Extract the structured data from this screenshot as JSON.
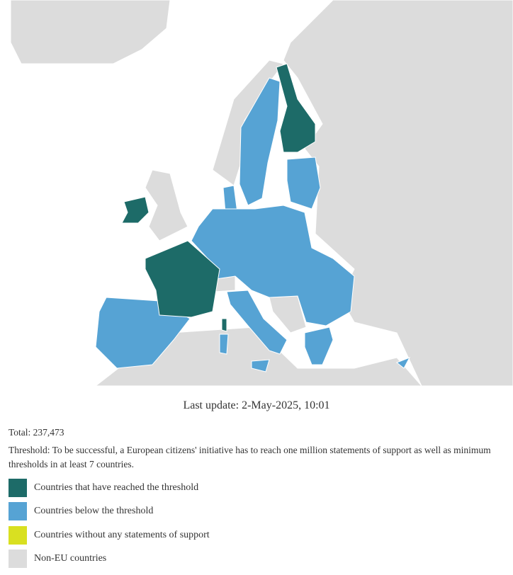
{
  "map": {
    "last_update": "Last update: 2-May-2025, 10:01"
  },
  "info": {
    "total": "Total: 237,473",
    "threshold": "Threshold: To be successful, a European citizens' initiative has to reach one million statements of support as well as minimum thresholds in at least 7 countries."
  },
  "legend": [
    {
      "label": "Countries that have reached the threshold",
      "color": "#1d6b68"
    },
    {
      "label": "Countries below the threshold",
      "color": "#56a3d4"
    },
    {
      "label": "Countries without any statements of support",
      "color": "#d9e021"
    },
    {
      "label": "Non-EU countries",
      "color": "#dcdcdc"
    }
  ]
}
